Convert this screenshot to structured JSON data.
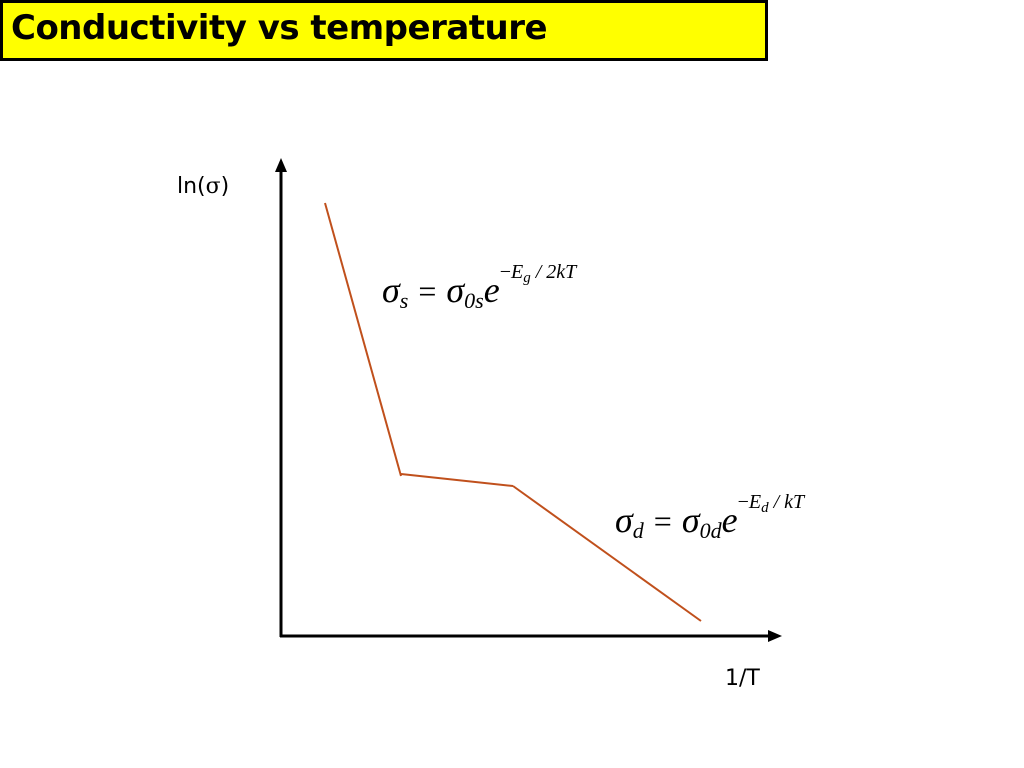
{
  "title": "Conductivity vs temperature",
  "y_axis_label_prefix": "ln(",
  "y_axis_label_symbol": "σ",
  "y_axis_label_suffix": ")",
  "x_axis_label": "1/T",
  "line_color": "#c0501c",
  "title_bg_color": "#ffff00",
  "equation_intrinsic": {
    "lhs_symbol": "σ",
    "lhs_sub": "s",
    "equals": "=",
    "rhs_symbol": "σ",
    "rhs_sub": "0s",
    "base": "e",
    "exp_minus": "−",
    "exp_E": "E",
    "exp_E_sub": "g",
    "exp_rest": " / 2kT"
  },
  "equation_extrinsic": {
    "lhs_symbol": "σ",
    "lhs_sub": "d",
    "equals": "=",
    "rhs_symbol": "σ",
    "rhs_sub": "0d",
    "base": "e",
    "exp_minus": "−",
    "exp_E": "E",
    "exp_E_sub": "d",
    "exp_rest": " / kT"
  }
}
